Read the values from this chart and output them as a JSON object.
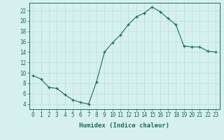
{
  "x": [
    0,
    1,
    2,
    3,
    4,
    5,
    6,
    7,
    8,
    9,
    10,
    11,
    12,
    13,
    14,
    15,
    16,
    17,
    18,
    19,
    20,
    21,
    22,
    23
  ],
  "y": [
    9.5,
    8.8,
    7.2,
    7.0,
    5.8,
    4.8,
    4.3,
    4.0,
    8.3,
    14.0,
    15.8,
    17.3,
    19.3,
    20.8,
    21.5,
    22.7,
    21.8,
    20.5,
    19.3,
    15.2,
    15.0,
    15.0,
    14.2,
    14.0
  ],
  "line_color": "#1a6b5a",
  "marker_color": "#1a6b5a",
  "bg_color": "#d6f0f0",
  "grid_color": "#b8dede",
  "axis_color": "#1a6b5a",
  "xlabel": "Humidex (Indice chaleur)",
  "xlim": [
    -0.5,
    23.5
  ],
  "ylim": [
    3.0,
    23.5
  ],
  "yticks": [
    4,
    6,
    8,
    10,
    12,
    14,
    16,
    18,
    20,
    22
  ],
  "xticks": [
    0,
    1,
    2,
    3,
    4,
    5,
    6,
    7,
    8,
    9,
    10,
    11,
    12,
    13,
    14,
    15,
    16,
    17,
    18,
    19,
    20,
    21,
    22,
    23
  ],
  "tick_font_size": 5.5,
  "label_font_size": 6.5
}
